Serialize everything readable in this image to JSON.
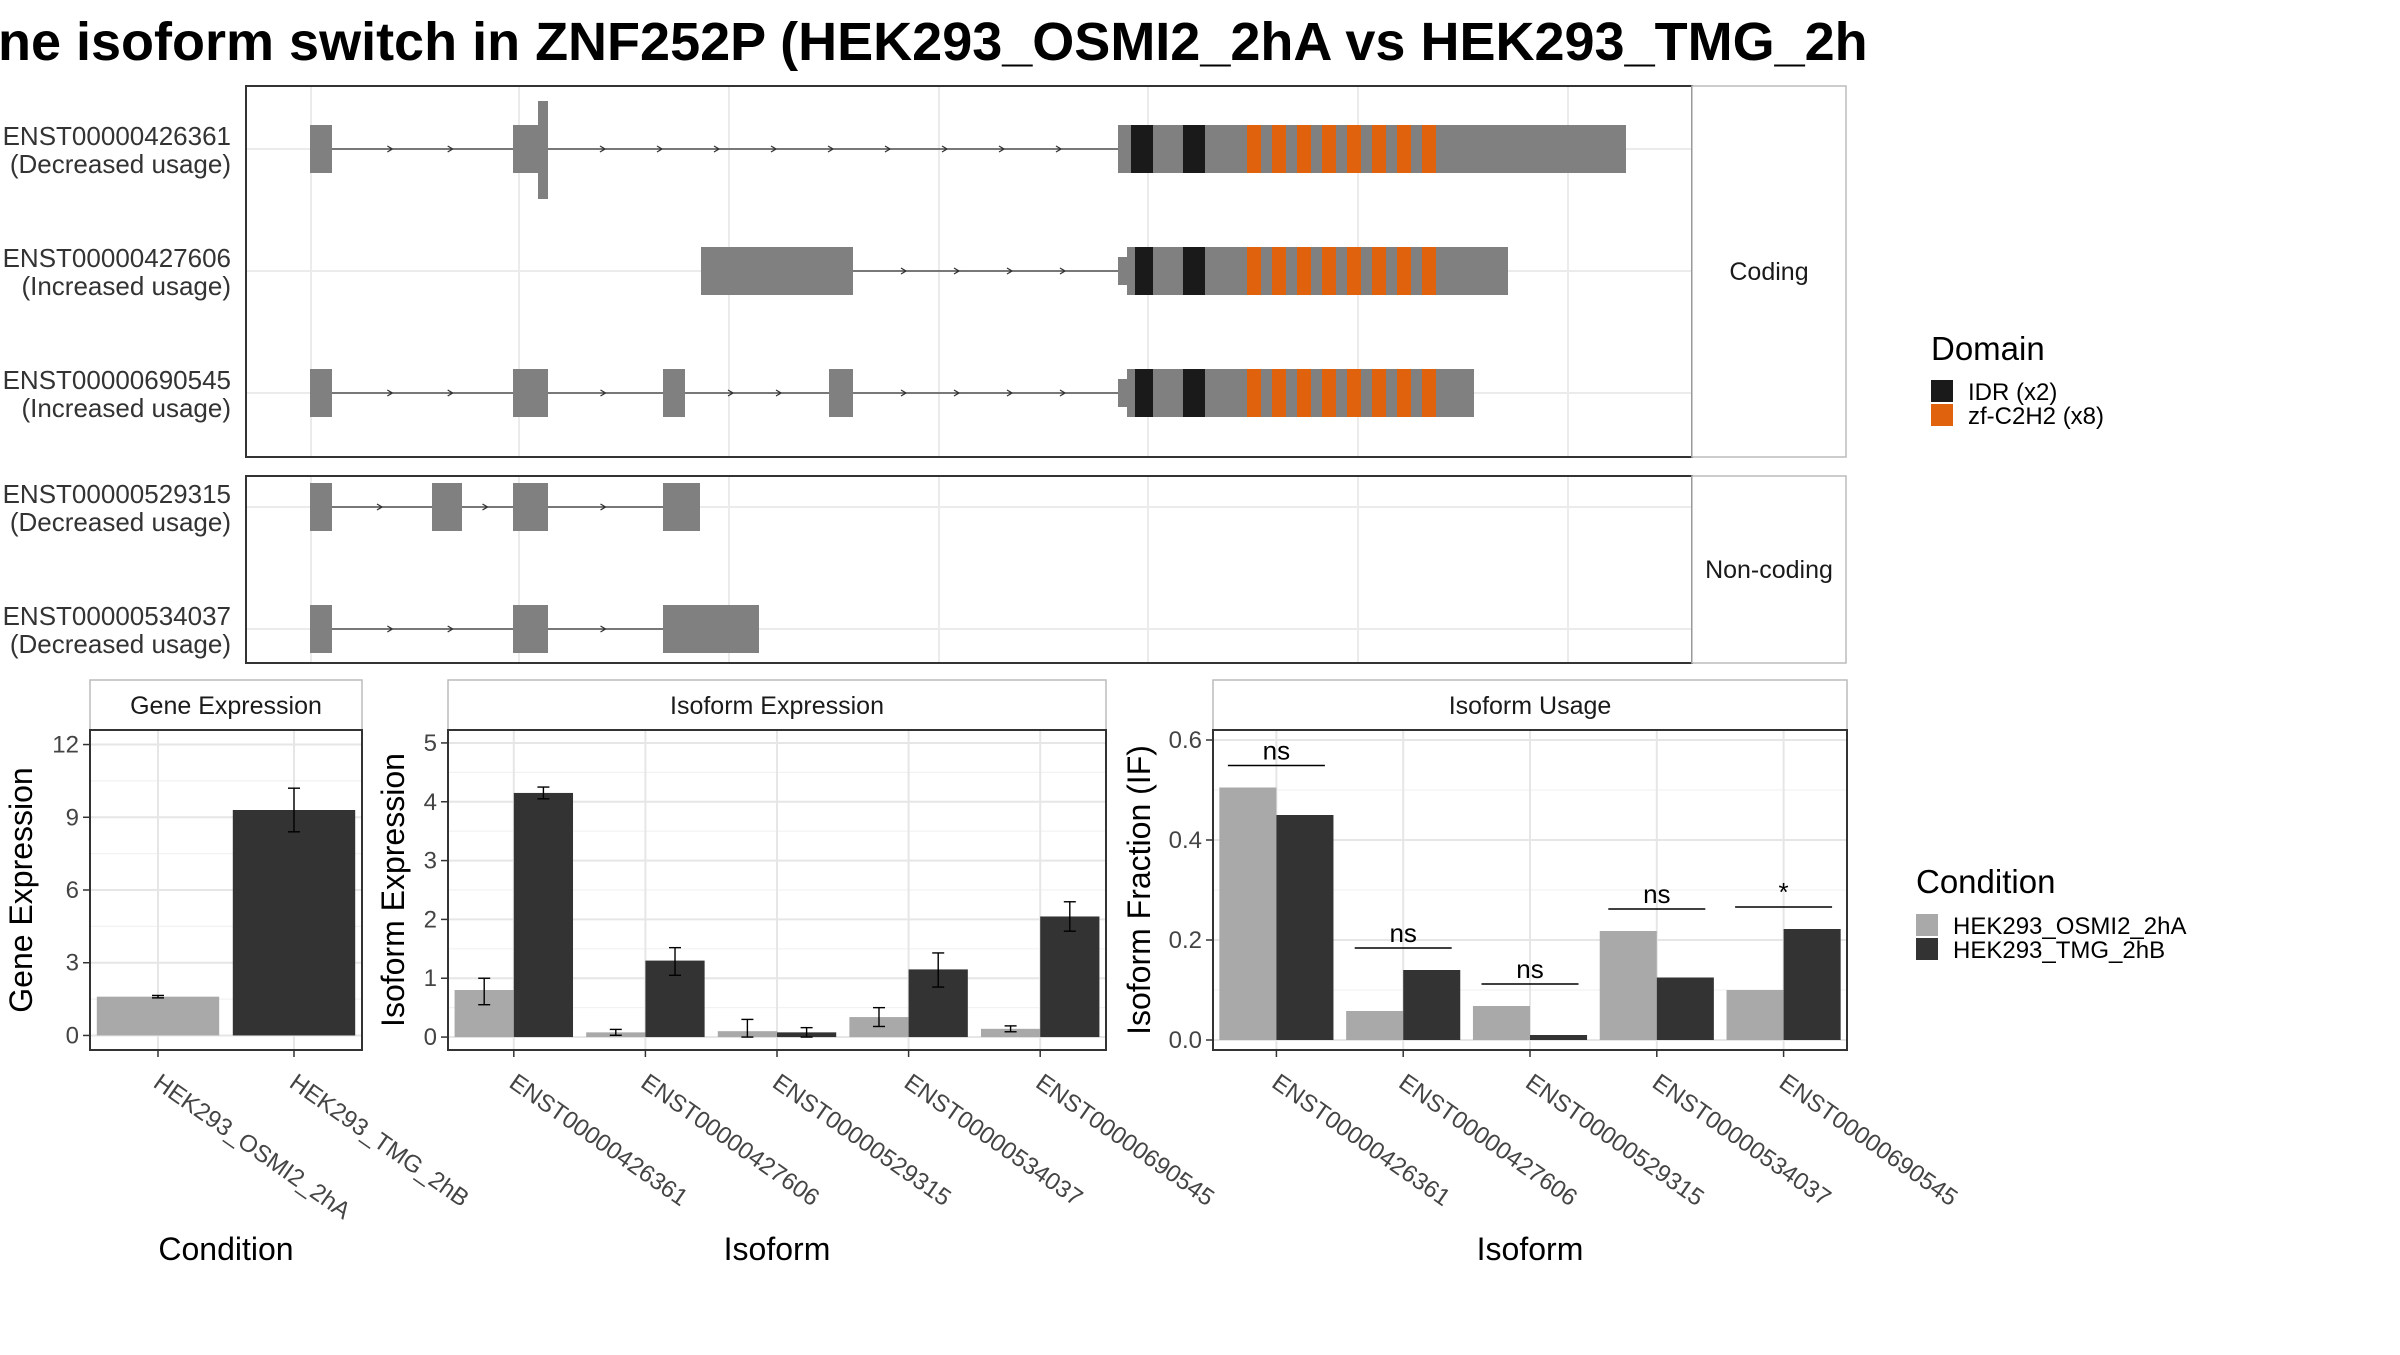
{
  "title": "ne isoform switch in ZNF252P (HEK293_OSMI2_2hA vs HEK293_TMG_2h",
  "structure": {
    "coding_label": "Coding",
    "noncoding_label": "Non-coding",
    "coding_isoforms": [
      {
        "id": "ENST00000426361",
        "usage": "(Decreased usage)"
      },
      {
        "id": "ENST00000427606",
        "usage": "(Increased usage)"
      },
      {
        "id": "ENST00000690545",
        "usage": "(Increased usage)"
      }
    ],
    "noncoding_isoforms": [
      {
        "id": "ENST00000529315",
        "usage": "(Decreased usage)"
      },
      {
        "id": "ENST00000534037",
        "usage": "(Decreased usage)"
      }
    ]
  },
  "domain_legend": {
    "title": "Domain",
    "items": [
      {
        "label": "IDR (x2)",
        "color": "#1a1a1a"
      },
      {
        "label": "zf-C2H2 (x8)",
        "color": "#e0620d"
      }
    ]
  },
  "condition_legend": {
    "title": "Condition",
    "items": [
      {
        "label": "HEK293_OSMI2_2hA",
        "color": "#a9a9a9"
      },
      {
        "label": "HEK293_TMG_2hB",
        "color": "#333333"
      }
    ]
  },
  "chart_data": [
    {
      "type": "bar",
      "title": "Gene Expression",
      "xlabel": "Condition",
      "ylabel": "Gene Expression",
      "categories": [
        "HEK293_OSMI2_2hA",
        "HEK293_TMG_2hB"
      ],
      "values": [
        1.6,
        9.3
      ],
      "errors": [
        [
          1.55,
          1.65
        ],
        [
          8.4,
          10.2
        ]
      ],
      "colors": [
        "#a9a9a9",
        "#333333"
      ],
      "ylim": [
        -0.6,
        12.6
      ],
      "yticks": [
        0,
        3,
        6,
        9,
        12
      ]
    },
    {
      "type": "bar",
      "title": "Isoform Expression",
      "xlabel": "Isoform",
      "ylabel": "Isoform Expression",
      "categories": [
        "ENST00000426361",
        "ENST00000427606",
        "ENST00000529315",
        "ENST00000534037",
        "ENST00000690545"
      ],
      "series": [
        {
          "name": "HEK293_OSMI2_2hA",
          "values": [
            0.8,
            0.08,
            0.1,
            0.34,
            0.14
          ],
          "errors": [
            [
              0.55,
              1.0
            ],
            [
              0.03,
              0.13
            ],
            [
              0.0,
              0.3
            ],
            [
              0.18,
              0.5
            ],
            [
              0.09,
              0.19
            ]
          ]
        },
        {
          "name": "HEK293_TMG_2hB",
          "values": [
            4.15,
            1.3,
            0.08,
            1.15,
            2.05
          ],
          "errors": [
            [
              4.05,
              4.25
            ],
            [
              1.05,
              1.52
            ],
            [
              0.0,
              0.16
            ],
            [
              0.85,
              1.43
            ],
            [
              1.8,
              2.3
            ]
          ]
        }
      ],
      "ylim": [
        -0.22,
        5.22
      ],
      "yticks": [
        0,
        1,
        2,
        3,
        4,
        5
      ]
    },
    {
      "type": "bar",
      "title": "Isoform Usage",
      "xlabel": "Isoform",
      "ylabel": "Isoform Fraction (IF)",
      "categories": [
        "ENST00000426361",
        "ENST00000427606",
        "ENST00000529315",
        "ENST00000534037",
        "ENST00000690545"
      ],
      "series": [
        {
          "name": "HEK293_OSMI2_2hA",
          "values": [
            0.505,
            0.058,
            0.068,
            0.218,
            0.1
          ]
        },
        {
          "name": "HEK293_TMG_2hB",
          "values": [
            0.45,
            0.14,
            0.01,
            0.125,
            0.222
          ]
        }
      ],
      "significance": [
        "ns",
        "ns",
        "ns",
        "ns",
        "*"
      ],
      "ylim": [
        -0.02,
        0.62
      ],
      "yticks": [
        0.0,
        0.2,
        0.4,
        0.6
      ]
    }
  ]
}
